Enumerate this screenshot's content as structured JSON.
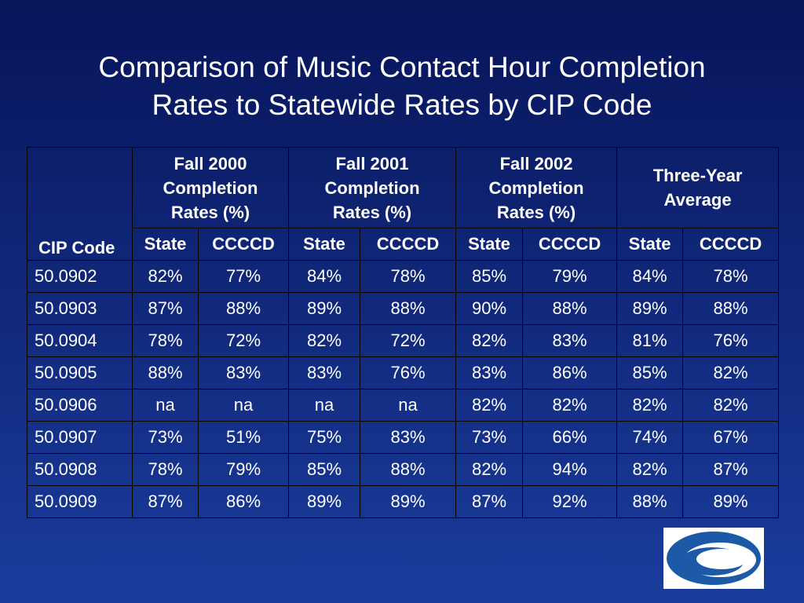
{
  "header": {
    "title_lines": [
      "Comparison of Music Contact Hour Completion",
      "Rates to Statewide Rates by CIP Code"
    ]
  },
  "table": {
    "cip_header": "CIP Code",
    "groups": [
      "Fall 2000 Completion Rates (%)",
      "Fall 2001 Completion Rates (%)",
      "Fall 2002 Completion Rates (%)",
      "Three-Year Average"
    ],
    "subheaders": [
      "State",
      "CCCCD",
      "State",
      "CCCCD",
      "State",
      "CCCCD",
      "State",
      "CCCCD"
    ],
    "rows": [
      [
        "50.0902",
        "82%",
        "77%",
        "84%",
        "78%",
        "85%",
        "79%",
        "84%",
        "78%"
      ],
      [
        "50.0903",
        "87%",
        "88%",
        "89%",
        "88%",
        "90%",
        "88%",
        "89%",
        "88%"
      ],
      [
        "50.0904",
        "78%",
        "72%",
        "82%",
        "72%",
        "82%",
        "83%",
        "81%",
        "76%"
      ],
      [
        "50.0905",
        "88%",
        "83%",
        "83%",
        "76%",
        "83%",
        "86%",
        "85%",
        "82%"
      ],
      [
        "50.0906",
        "na",
        "na",
        "na",
        "na",
        "82%",
        "82%",
        "82%",
        "82%"
      ],
      [
        "50.0907",
        "73%",
        "51%",
        "75%",
        "83%",
        "73%",
        "66%",
        "74%",
        "67%"
      ],
      [
        "50.0908",
        "78%",
        "79%",
        "85%",
        "88%",
        "82%",
        "94%",
        "82%",
        "87%"
      ],
      [
        "50.0909",
        "87%",
        "86%",
        "89%",
        "89%",
        "87%",
        "92%",
        "88%",
        "89%"
      ]
    ]
  }
}
